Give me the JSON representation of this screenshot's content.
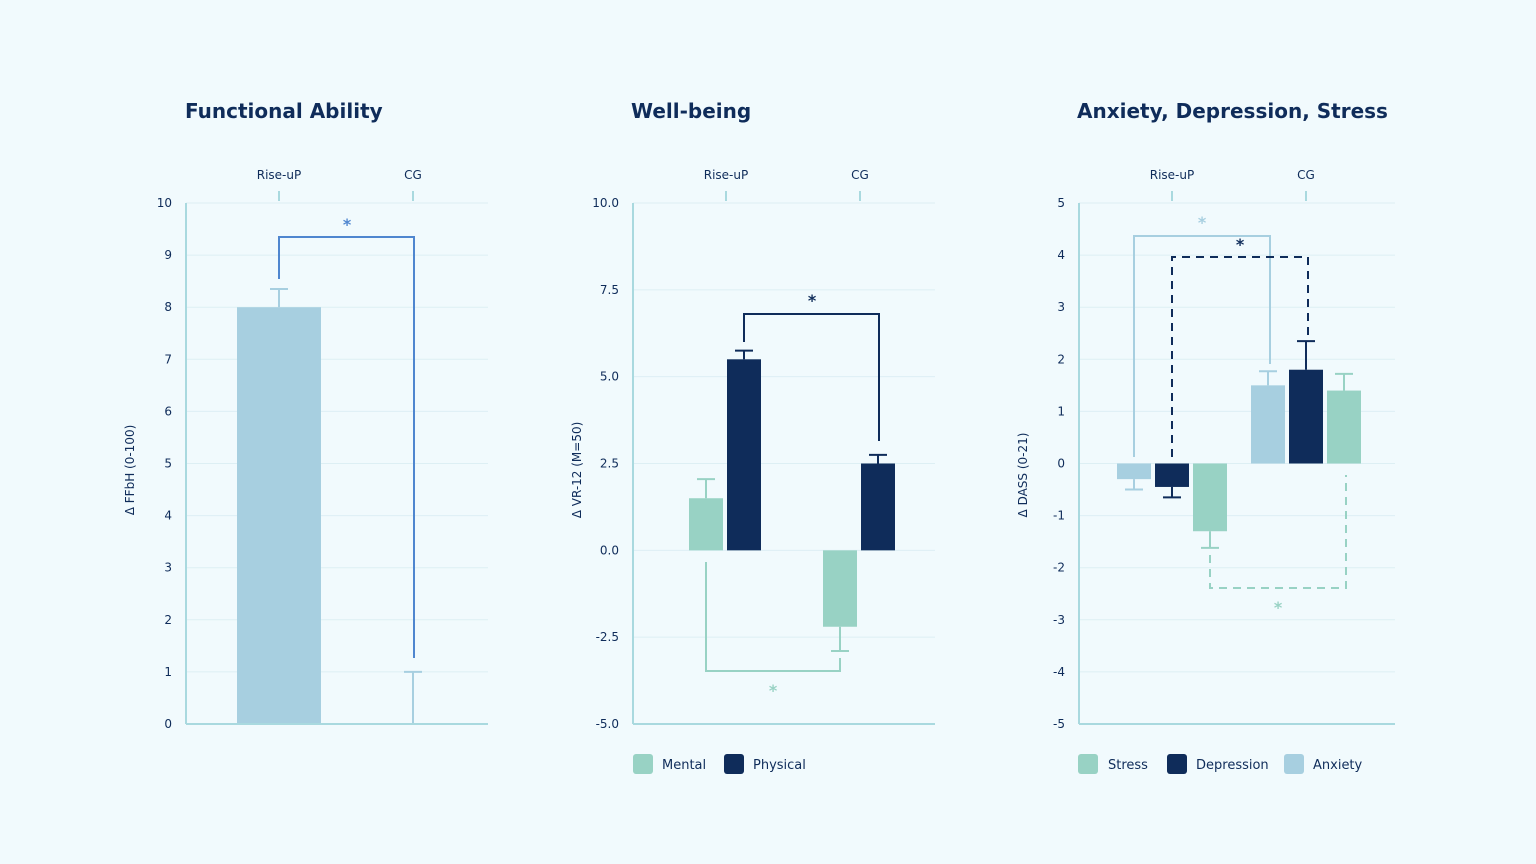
{
  "colors": {
    "background": "#F1FAFD",
    "axis": "#A9D9DF",
    "grid": "#DDEFF4",
    "text": "#0F2C5A",
    "mental_stress": "#98D2C4",
    "physical_depression": "#0F2C5A",
    "functional_anxiety": "#A7CFE0",
    "bracket_blue": "#4F86CF"
  },
  "chart_data": [
    {
      "type": "bar",
      "title": "Functional Ability",
      "ylabel": "Δ FFbH (0-100)",
      "groups": [
        "Rise-uP",
        "CG"
      ],
      "ylim": [
        0,
        10
      ],
      "yticks": [
        "10",
        "9",
        "8",
        "7",
        "6",
        "5",
        "4",
        "3",
        "2",
        "1",
        "0"
      ],
      "series": [
        {
          "values": [
            8.0,
            0.0
          ],
          "errors": [
            0.35,
            1.0
          ]
        }
      ],
      "significance": [
        {
          "label": "*"
        }
      ]
    },
    {
      "type": "bar",
      "title": "Well-being",
      "ylabel": "Δ VR-12 (M=50)",
      "groups": [
        "Rise-uP",
        "CG"
      ],
      "ylim": [
        -5,
        10
      ],
      "yticks": [
        "10.0",
        "7.5",
        "5.0",
        "2.5",
        "0.0",
        "-2.5",
        "-5.0"
      ],
      "series": [
        {
          "name": "Mental",
          "values": [
            1.5,
            -2.2
          ],
          "errors": [
            0.55,
            0.7
          ]
        },
        {
          "name": "Physical",
          "values": [
            5.5,
            2.5
          ],
          "errors": [
            0.25,
            0.25
          ]
        }
      ],
      "significance": [
        {
          "label": "*"
        },
        {
          "label": "*"
        }
      ]
    },
    {
      "type": "bar",
      "title": "Anxiety, Depression, Stress",
      "ylabel": "Δ DASS (0-21)",
      "groups": [
        "Rise-uP",
        "CG"
      ],
      "ylim": [
        -5,
        5
      ],
      "yticks": [
        "5",
        "4",
        "3",
        "2",
        "1",
        "0",
        "-1",
        "-2",
        "-3",
        "-4",
        "-5"
      ],
      "series": [
        {
          "name": "Stress",
          "values": [
            -1.3,
            1.4
          ],
          "errors": [
            0.32,
            0.32
          ]
        },
        {
          "name": "Depression",
          "values": [
            -0.45,
            1.8
          ],
          "errors": [
            0.2,
            0.55
          ]
        },
        {
          "name": "Anxiety",
          "values": [
            -0.3,
            1.5
          ],
          "errors": [
            0.2,
            0.27
          ]
        }
      ],
      "significance": [
        {
          "label": "*"
        },
        {
          "label": "*"
        },
        {
          "label": "*"
        }
      ]
    }
  ]
}
